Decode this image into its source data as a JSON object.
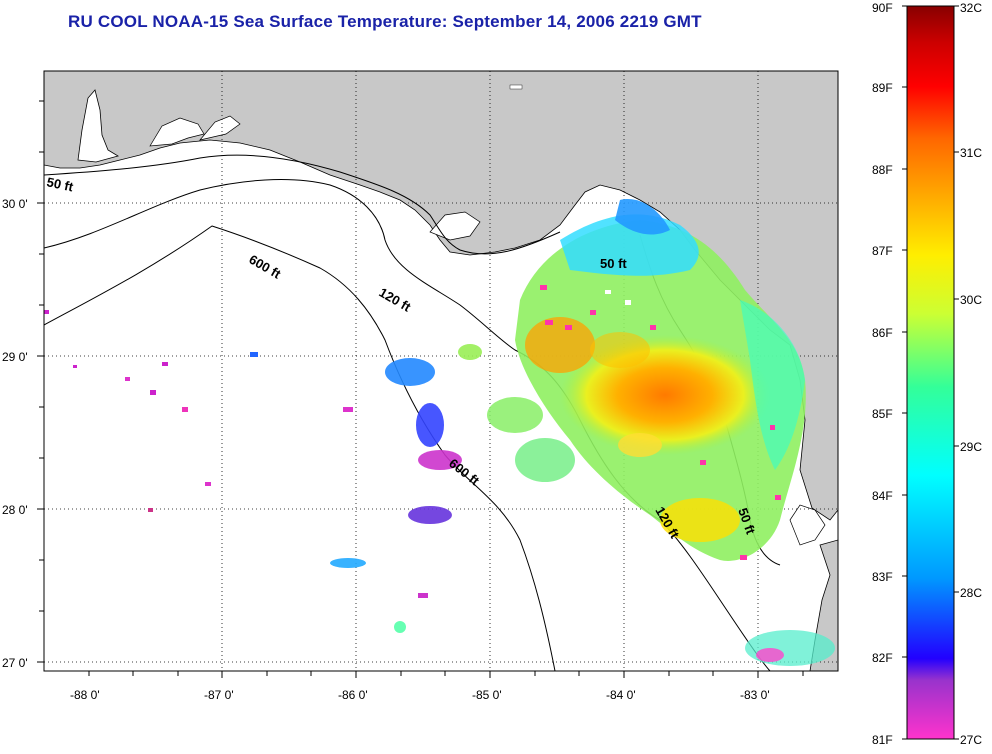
{
  "title": "RU COOL  NOAA-15  Sea Surface Temperature:  September 14, 2006 2219 GMT",
  "map": {
    "lon_ticks": [
      "-88 0'",
      "-87 0'",
      "-86 0'",
      "-85 0'",
      "-84 0'",
      "-83 0'"
    ],
    "lat_ticks": [
      "30 0'",
      "29 0'",
      "28 0'",
      "27 0'"
    ],
    "contours": [
      "50 ft",
      "600 ft",
      "120 ft",
      "50 ft",
      "600 ft",
      "120 ft",
      "50 ft"
    ],
    "land_color": "#c8c8c8",
    "water_color": "#ffffff"
  },
  "colorbar": {
    "fahrenheit": [
      "90F",
      "89F",
      "88F",
      "87F",
      "86F",
      "85F",
      "84F",
      "83F",
      "82F",
      "81F"
    ],
    "celsius": [
      "32C",
      "31C",
      "30C",
      "29C",
      "28C",
      "27C"
    ],
    "gradient": [
      "#ff33cc",
      "#9933cc",
      "#2200ff",
      "#0099ff",
      "#00ffff",
      "#33ff99",
      "#ccff33",
      "#ffee00",
      "#ffaa00",
      "#ff6600",
      "#ff0000",
      "#cc0000",
      "#880000"
    ]
  }
}
